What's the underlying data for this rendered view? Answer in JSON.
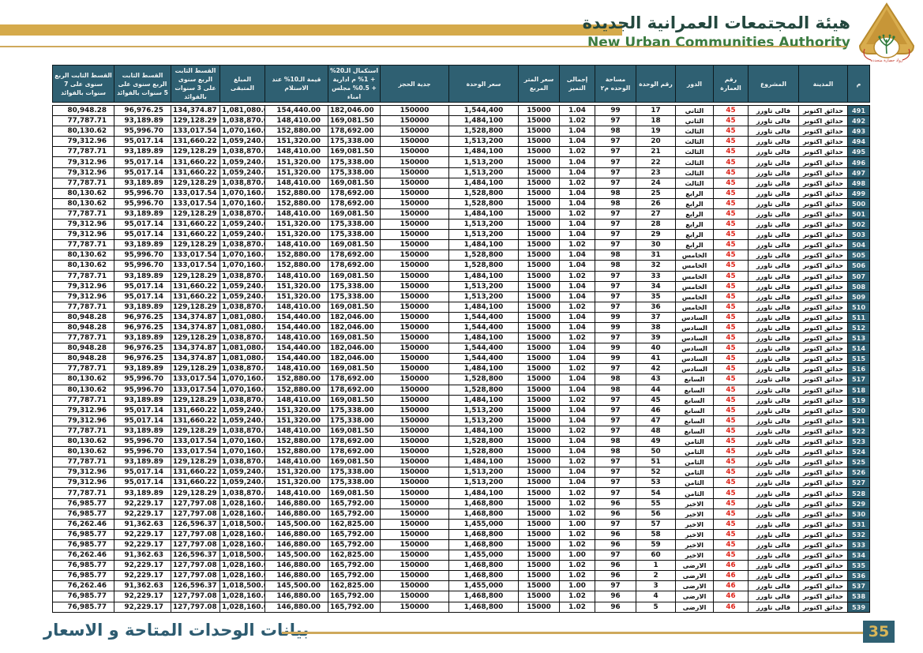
{
  "header": {
    "title_ar": "هيئة المجتمعات العمرانية الجديدة",
    "title_en": "New Urban Communities Authority",
    "logo": "nuca-logo"
  },
  "footer": {
    "title": "بيانات الوحدات المتاحة و الاسعار",
    "page_number": "35"
  },
  "colors": {
    "header_teal": "#2f6072",
    "gold": "#d5aa4b",
    "building_red": "#e0251b",
    "title_green": "#3b7b40",
    "footer_teal": "#2d5b70"
  },
  "table": {
    "column_keys": [
      "serial",
      "city",
      "project",
      "building-no",
      "floor",
      "unit-no",
      "area-m2",
      "premium-total",
      "price-per-m2",
      "unit-price",
      "booking-deposit",
      "completion-20pct",
      "value-10pct-on-delivery",
      "remaining-amount",
      "installment-3y",
      "installment-5y",
      "installment-7y"
    ],
    "columns": [
      "م",
      "المدينة",
      "المشروع",
      "رقم العمارة",
      "الدور",
      "رقم الوحدة",
      "مساحة الوحده م٢",
      "إجمالى التميز",
      "سعر المتر المربع",
      "سعر الوحدة",
      "جدية الحجز",
      "استكمال الـ20% + 1% م ادارية + 0.5% مجلس امناء",
      "قيمة الـ10% عند الاستلام",
      "المبلغ المتبقى",
      "القسط الثابت الربع سنوى على 3 سنوات بالفوائد",
      "القسط الثابت الربع سنوى على 5 سنوات بالفوائد",
      "القسط الثابت الربع سنوى على 7 سنوات بالفوائد"
    ],
    "rows": [
      [
        "491",
        "حدائق اكتوبر",
        "فالى تاورز",
        "45",
        "الثاني",
        "17",
        "99",
        "1.04",
        "15000",
        "1,544,400",
        "150000",
        "182,046.00",
        "154,440.00",
        "1,081,080.00",
        "134,374.87",
        "96,976.25",
        "80,948.28"
      ],
      [
        "492",
        "حدائق اكتوبر",
        "فالى تاورز",
        "45",
        "الثاني",
        "18",
        "97",
        "1.02",
        "15000",
        "1,484,100",
        "150000",
        "169,081.50",
        "148,410.00",
        "1,038,870.00",
        "129,128.29",
        "93,189.89",
        "77,787.71"
      ],
      [
        "493",
        "حدائق اكتوبر",
        "فالى تاورز",
        "45",
        "الثالث",
        "19",
        "98",
        "1.04",
        "15000",
        "1,528,800",
        "150000",
        "178,692.00",
        "152,880.00",
        "1,070,160.00",
        "133,017.54",
        "95,996.70",
        "80,130.62"
      ],
      [
        "494",
        "حدائق اكتوبر",
        "فالى تاورز",
        "45",
        "الثالث",
        "20",
        "97",
        "1.04",
        "15000",
        "1,513,200",
        "150000",
        "175,338.00",
        "151,320.00",
        "1,059,240.00",
        "131,660.22",
        "95,017.14",
        "79,312.96"
      ],
      [
        "495",
        "حدائق اكتوبر",
        "فالى تاورز",
        "45",
        "الثالث",
        "21",
        "97",
        "1.02",
        "15000",
        "1,484,100",
        "150000",
        "169,081.50",
        "148,410.00",
        "1,038,870.00",
        "129,128.29",
        "93,189.89",
        "77,787.71"
      ],
      [
        "496",
        "حدائق اكتوبر",
        "فالى تاورز",
        "45",
        "الثالث",
        "22",
        "97",
        "1.04",
        "15000",
        "1,513,200",
        "150000",
        "175,338.00",
        "151,320.00",
        "1,059,240.00",
        "131,660.22",
        "95,017.14",
        "79,312.96"
      ],
      [
        "497",
        "حدائق اكتوبر",
        "فالى تاورز",
        "45",
        "الثالث",
        "23",
        "97",
        "1.04",
        "15000",
        "1,513,200",
        "150000",
        "175,338.00",
        "151,320.00",
        "1,059,240.00",
        "131,660.22",
        "95,017.14",
        "79,312.96"
      ],
      [
        "498",
        "حدائق اكتوبر",
        "فالى تاورز",
        "45",
        "الثالث",
        "24",
        "97",
        "1.02",
        "15000",
        "1,484,100",
        "150000",
        "169,081.50",
        "148,410.00",
        "1,038,870.00",
        "129,128.29",
        "93,189.89",
        "77,787.71"
      ],
      [
        "499",
        "حدائق اكتوبر",
        "فالى تاورز",
        "45",
        "الرابع",
        "25",
        "98",
        "1.04",
        "15000",
        "1,528,800",
        "150000",
        "178,692.00",
        "152,880.00",
        "1,070,160.00",
        "133,017.54",
        "95,996.70",
        "80,130.62"
      ],
      [
        "500",
        "حدائق اكتوبر",
        "فالى تاورز",
        "45",
        "الرابع",
        "26",
        "98",
        "1.04",
        "15000",
        "1,528,800",
        "150000",
        "178,692.00",
        "152,880.00",
        "1,070,160.00",
        "133,017.54",
        "95,996.70",
        "80,130.62"
      ],
      [
        "501",
        "حدائق اكتوبر",
        "فالى تاورز",
        "45",
        "الرابع",
        "27",
        "97",
        "1.02",
        "15000",
        "1,484,100",
        "150000",
        "169,081.50",
        "148,410.00",
        "1,038,870.00",
        "129,128.29",
        "93,189.89",
        "77,787.71"
      ],
      [
        "502",
        "حدائق اكتوبر",
        "فالى تاورز",
        "45",
        "الرابع",
        "28",
        "97",
        "1.04",
        "15000",
        "1,513,200",
        "150000",
        "175,338.00",
        "151,320.00",
        "1,059,240.00",
        "131,660.22",
        "95,017.14",
        "79,312.96"
      ],
      [
        "503",
        "حدائق اكتوبر",
        "فالى تاورز",
        "45",
        "الرابع",
        "29",
        "97",
        "1.04",
        "15000",
        "1,513,200",
        "150000",
        "175,338.00",
        "151,320.00",
        "1,059,240.00",
        "131,660.22",
        "95,017.14",
        "79,312.96"
      ],
      [
        "504",
        "حدائق اكتوبر",
        "فالى تاورز",
        "45",
        "الرابع",
        "30",
        "97",
        "1.02",
        "15000",
        "1,484,100",
        "150000",
        "169,081.50",
        "148,410.00",
        "1,038,870.00",
        "129,128.29",
        "93,189.89",
        "77,787.71"
      ],
      [
        "505",
        "حدائق اكتوبر",
        "فالى تاورز",
        "45",
        "الخامس",
        "31",
        "98",
        "1.04",
        "15000",
        "1,528,800",
        "150000",
        "178,692.00",
        "152,880.00",
        "1,070,160.00",
        "133,017.54",
        "95,996.70",
        "80,130.62"
      ],
      [
        "506",
        "حدائق اكتوبر",
        "فالى تاورز",
        "45",
        "الخامس",
        "32",
        "98",
        "1.04",
        "15000",
        "1,528,800",
        "150000",
        "178,692.00",
        "152,880.00",
        "1,070,160.00",
        "133,017.54",
        "95,996.70",
        "80,130.62"
      ],
      [
        "507",
        "حدائق اكتوبر",
        "فالى تاورز",
        "45",
        "الخامس",
        "33",
        "97",
        "1.02",
        "15000",
        "1,484,100",
        "150000",
        "169,081.50",
        "148,410.00",
        "1,038,870.00",
        "129,128.29",
        "93,189.89",
        "77,787.71"
      ],
      [
        "508",
        "حدائق اكتوبر",
        "فالى تاورز",
        "45",
        "الخامس",
        "34",
        "97",
        "1.04",
        "15000",
        "1,513,200",
        "150000",
        "175,338.00",
        "151,320.00",
        "1,059,240.00",
        "131,660.22",
        "95,017.14",
        "79,312.96"
      ],
      [
        "509",
        "حدائق اكتوبر",
        "فالى تاورز",
        "45",
        "الخامس",
        "35",
        "97",
        "1.04",
        "15000",
        "1,513,200",
        "150000",
        "175,338.00",
        "151,320.00",
        "1,059,240.00",
        "131,660.22",
        "95,017.14",
        "79,312.96"
      ],
      [
        "510",
        "حدائق اكتوبر",
        "فالى تاورز",
        "45",
        "الخامس",
        "36",
        "97",
        "1.02",
        "15000",
        "1,484,100",
        "150000",
        "169,081.50",
        "148,410.00",
        "1,038,870.00",
        "129,128.29",
        "93,189.89",
        "77,787.71"
      ],
      [
        "511",
        "حدائق اكتوبر",
        "فالى تاورز",
        "45",
        "السادس",
        "37",
        "99",
        "1.04",
        "15000",
        "1,544,400",
        "150000",
        "182,046.00",
        "154,440.00",
        "1,081,080.00",
        "134,374.87",
        "96,976.25",
        "80,948.28"
      ],
      [
        "512",
        "حدائق اكتوبر",
        "فالى تاورز",
        "45",
        "السادس",
        "38",
        "99",
        "1.04",
        "15000",
        "1,544,400",
        "150000",
        "182,046.00",
        "154,440.00",
        "1,081,080.00",
        "134,374.87",
        "96,976.25",
        "80,948.28"
      ],
      [
        "513",
        "حدائق اكتوبر",
        "فالى تاورز",
        "45",
        "السادس",
        "39",
        "97",
        "1.02",
        "15000",
        "1,484,100",
        "150000",
        "169,081.50",
        "148,410.00",
        "1,038,870.00",
        "129,128.29",
        "93,189.89",
        "77,787.71"
      ],
      [
        "514",
        "حدائق اكتوبر",
        "فالى تاورز",
        "45",
        "السادس",
        "40",
        "99",
        "1.04",
        "15000",
        "1,544,400",
        "150000",
        "182,046.00",
        "154,440.00",
        "1,081,080.00",
        "134,374.87",
        "96,976.25",
        "80,948.28"
      ],
      [
        "515",
        "حدائق اكتوبر",
        "فالى تاورز",
        "45",
        "السادس",
        "41",
        "99",
        "1.04",
        "15000",
        "1,544,400",
        "150000",
        "182,046.00",
        "154,440.00",
        "1,081,080.00",
        "134,374.87",
        "96,976.25",
        "80,948.28"
      ],
      [
        "516",
        "حدائق اكتوبر",
        "فالى تاورز",
        "45",
        "السادس",
        "42",
        "97",
        "1.02",
        "15000",
        "1,484,100",
        "150000",
        "169,081.50",
        "148,410.00",
        "1,038,870.00",
        "129,128.29",
        "93,189.89",
        "77,787.71"
      ],
      [
        "517",
        "حدائق اكتوبر",
        "فالى تاورز",
        "45",
        "السابع",
        "43",
        "98",
        "1.04",
        "15000",
        "1,528,800",
        "150000",
        "178,692.00",
        "152,880.00",
        "1,070,160.00",
        "133,017.54",
        "95,996.70",
        "80,130.62"
      ],
      [
        "518",
        "حدائق اكتوبر",
        "فالى تاورز",
        "45",
        "السابع",
        "44",
        "98",
        "1.04",
        "15000",
        "1,528,800",
        "150000",
        "178,692.00",
        "152,880.00",
        "1,070,160.00",
        "133,017.54",
        "95,996.70",
        "80,130.62"
      ],
      [
        "519",
        "حدائق اكتوبر",
        "فالى تاورز",
        "45",
        "السابع",
        "45",
        "97",
        "1.02",
        "15000",
        "1,484,100",
        "150000",
        "169,081.50",
        "148,410.00",
        "1,038,870.00",
        "129,128.29",
        "93,189.89",
        "77,787.71"
      ],
      [
        "520",
        "حدائق اكتوبر",
        "فالى تاورز",
        "45",
        "السابع",
        "46",
        "97",
        "1.04",
        "15000",
        "1,513,200",
        "150000",
        "175,338.00",
        "151,320.00",
        "1,059,240.00",
        "131,660.22",
        "95,017.14",
        "79,312.96"
      ],
      [
        "521",
        "حدائق اكتوبر",
        "فالى تاورز",
        "45",
        "السابع",
        "47",
        "97",
        "1.04",
        "15000",
        "1,513,200",
        "150000",
        "175,338.00",
        "151,320.00",
        "1,059,240.00",
        "131,660.22",
        "95,017.14",
        "79,312.96"
      ],
      [
        "522",
        "حدائق اكتوبر",
        "فالى تاورز",
        "45",
        "السابع",
        "48",
        "97",
        "1.02",
        "15000",
        "1,484,100",
        "150000",
        "169,081.50",
        "148,410.00",
        "1,038,870.00",
        "129,128.29",
        "93,189.89",
        "77,787.71"
      ],
      [
        "523",
        "حدائق اكتوبر",
        "فالى تاورز",
        "45",
        "الثامن",
        "49",
        "98",
        "1.04",
        "15000",
        "1,528,800",
        "150000",
        "178,692.00",
        "152,880.00",
        "1,070,160.00",
        "133,017.54",
        "95,996.70",
        "80,130.62"
      ],
      [
        "524",
        "حدائق اكتوبر",
        "فالى تاورز",
        "45",
        "الثامن",
        "50",
        "98",
        "1.04",
        "15000",
        "1,528,800",
        "150000",
        "178,692.00",
        "152,880.00",
        "1,070,160.00",
        "133,017.54",
        "95,996.70",
        "80,130.62"
      ],
      [
        "525",
        "حدائق اكتوبر",
        "فالى تاورز",
        "45",
        "الثامن",
        "51",
        "97",
        "1.02",
        "15000",
        "1,484,100",
        "150000",
        "169,081.50",
        "148,410.00",
        "1,038,870.00",
        "129,128.29",
        "93,189.89",
        "77,787.71"
      ],
      [
        "526",
        "حدائق اكتوبر",
        "فالى تاورز",
        "45",
        "الثامن",
        "52",
        "97",
        "1.04",
        "15000",
        "1,513,200",
        "150000",
        "175,338.00",
        "151,320.00",
        "1,059,240.00",
        "131,660.22",
        "95,017.14",
        "79,312.96"
      ],
      [
        "527",
        "حدائق اكتوبر",
        "فالى تاورز",
        "45",
        "الثامن",
        "53",
        "97",
        "1.04",
        "15000",
        "1,513,200",
        "150000",
        "175,338.00",
        "151,320.00",
        "1,059,240.00",
        "131,660.22",
        "95,017.14",
        "79,312.96"
      ],
      [
        "528",
        "حدائق اكتوبر",
        "فالى تاورز",
        "45",
        "الثامن",
        "54",
        "97",
        "1.02",
        "15000",
        "1,484,100",
        "150000",
        "169,081.50",
        "148,410.00",
        "1,038,870.00",
        "129,128.29",
        "93,189.89",
        "77,787.71"
      ],
      [
        "529",
        "حدائق اكتوبر",
        "فالى تاورز",
        "45",
        "الاخير",
        "55",
        "96",
        "1.02",
        "15000",
        "1,468,800",
        "150000",
        "165,792.00",
        "146,880.00",
        "1,028,160.00",
        "127,797.08",
        "92,229.17",
        "76,985.77"
      ],
      [
        "530",
        "حدائق اكتوبر",
        "فالى تاورز",
        "45",
        "الاخير",
        "56",
        "96",
        "1.02",
        "15000",
        "1,468,800",
        "150000",
        "165,792.00",
        "146,880.00",
        "1,028,160.00",
        "127,797.08",
        "92,229.17",
        "76,985.77"
      ],
      [
        "531",
        "حدائق اكتوبر",
        "فالى تاورز",
        "45",
        "الاخير",
        "57",
        "97",
        "1.00",
        "15000",
        "1,455,000",
        "150000",
        "162,825.00",
        "145,500.00",
        "1,018,500.00",
        "126,596.37",
        "91,362.63",
        "76,262.46"
      ],
      [
        "532",
        "حدائق اكتوبر",
        "فالى تاورز",
        "45",
        "الاخير",
        "58",
        "96",
        "1.02",
        "15000",
        "1,468,800",
        "150000",
        "165,792.00",
        "146,880.00",
        "1,028,160.00",
        "127,797.08",
        "92,229.17",
        "76,985.77"
      ],
      [
        "533",
        "حدائق اكتوبر",
        "فالى تاورز",
        "45",
        "الاخير",
        "59",
        "96",
        "1.02",
        "15000",
        "1,468,800",
        "150000",
        "165,792.00",
        "146,880.00",
        "1,028,160.00",
        "127,797.08",
        "92,229.17",
        "76,985.77"
      ],
      [
        "534",
        "حدائق اكتوبر",
        "فالى تاورز",
        "45",
        "الاخير",
        "60",
        "97",
        "1.00",
        "15000",
        "1,455,000",
        "150000",
        "162,825.00",
        "145,500.00",
        "1,018,500.00",
        "126,596.37",
        "91,362.63",
        "76,262.46"
      ],
      [
        "535",
        "حدائق اكتوبر",
        "فالى تاورز",
        "46",
        "الارضى",
        "1",
        "96",
        "1.02",
        "15000",
        "1,468,800",
        "150000",
        "165,792.00",
        "146,880.00",
        "1,028,160.00",
        "127,797.08",
        "92,229.17",
        "76,985.77"
      ],
      [
        "536",
        "حدائق اكتوبر",
        "فالى تاورز",
        "46",
        "الارضى",
        "2",
        "96",
        "1.02",
        "15000",
        "1,468,800",
        "150000",
        "165,792.00",
        "146,880.00",
        "1,028,160.00",
        "127,797.08",
        "92,229.17",
        "76,985.77"
      ],
      [
        "537",
        "حدائق اكتوبر",
        "فالى تاورز",
        "46",
        "الارضى",
        "3",
        "97",
        "1.00",
        "15000",
        "1,455,000",
        "150000",
        "162,825.00",
        "145,500.00",
        "1,018,500.00",
        "126,596.37",
        "91,362.63",
        "76,262.46"
      ],
      [
        "538",
        "حدائق اكتوبر",
        "فالى تاورز",
        "46",
        "الارضى",
        "4",
        "96",
        "1.02",
        "15000",
        "1,468,800",
        "150000",
        "165,792.00",
        "146,880.00",
        "1,028,160.00",
        "127,797.08",
        "92,229.17",
        "76,985.77"
      ],
      [
        "539",
        "حدائق اكتوبر",
        "فالى تاورز",
        "46",
        "الارضى",
        "5",
        "96",
        "1.02",
        "15000",
        "1,468,800",
        "150000",
        "165,792.00",
        "146,880.00",
        "1,028,160.00",
        "127,797.08",
        "92,229.17",
        "76,985.77"
      ]
    ]
  }
}
